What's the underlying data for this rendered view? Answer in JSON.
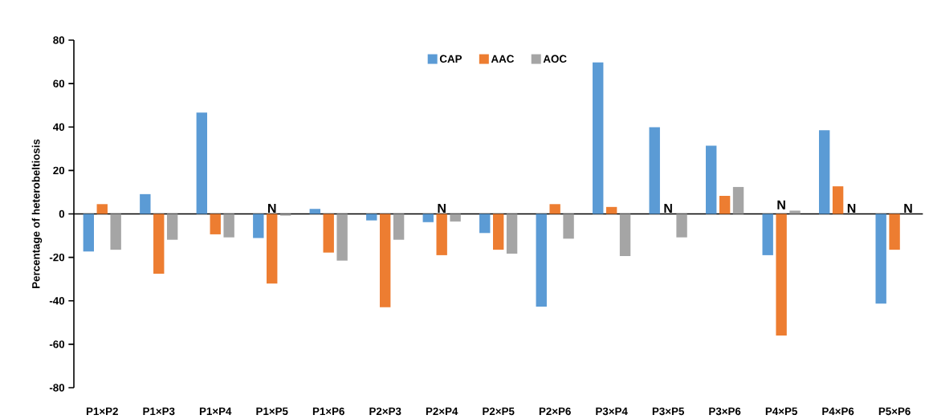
{
  "chart_data": {
    "type": "bar",
    "ylabel": "Percentage of heterobeltiosis",
    "categories": [
      "P1×P2",
      "P1×P3",
      "P1×P4",
      "P1×P5",
      "P1×P6",
      "P2×P3",
      "P2×P4",
      "P2×P5",
      "P2×P6",
      "P3×P4",
      "P3×P5",
      "P3×P6",
      "P4×P5",
      "P4×P6",
      "P5×P6"
    ],
    "series": [
      {
        "name": "CAP",
        "color": "#5b9bd5",
        "values": [
          -17.3,
          9.1,
          46.6,
          -11.1,
          2.3,
          -3.0,
          -3.8,
          -8.8,
          -42.7,
          69.7,
          39.9,
          31.4,
          -19.0,
          38.5,
          -41.3
        ]
      },
      {
        "name": "AAC",
        "color": "#ed7d31",
        "values": [
          4.5,
          -27.5,
          -9.4,
          -32.1,
          -17.8,
          -43.0,
          -19.0,
          -16.5,
          4.5,
          3.2,
          null,
          8.3,
          -56.0,
          12.7,
          -16.5
        ]
      },
      {
        "name": "AOC",
        "color": "#a5a5a5",
        "values": [
          -16.5,
          -11.9,
          -10.8,
          -0.8,
          -21.5,
          -11.9,
          -3.5,
          -18.3,
          -11.4,
          -19.4,
          -10.8,
          12.4,
          1.5,
          null,
          null
        ]
      }
    ],
    "ylim": [
      -80,
      80
    ],
    "yticks": [
      -80,
      -60,
      -40,
      -20,
      0,
      20,
      40,
      60,
      80
    ],
    "legend": "top",
    "annotations": [
      {
        "text": "N",
        "x": "P1×P5",
        "y": 0
      },
      {
        "text": "N",
        "x": "P2×P4",
        "y": 0
      },
      "N",
      {
        "text": "N",
        "x": "P4×P5",
        "y": 1.5
      },
      "N",
      "N"
    ]
  }
}
